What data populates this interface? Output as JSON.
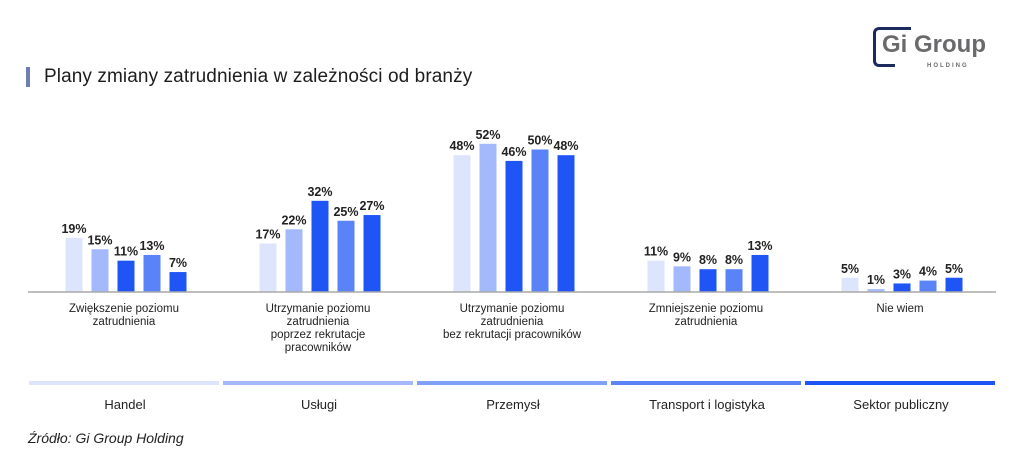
{
  "header": {
    "title": "Plany zmiany zatrudnienia w zależności od branży",
    "logo_main": "Gi Group",
    "logo_sub": "HOLDING"
  },
  "source": "Źródło: Gi Group Holding",
  "chart_data": {
    "type": "bar",
    "title": "Plany zmiany zatrudnienia w zależności od branży",
    "xlabel": "",
    "ylabel": "",
    "ylim": [
      0,
      55
    ],
    "grid": false,
    "legend_position": "bottom",
    "value_suffix": "%",
    "categories": [
      [
        "Zwiększenie poziomu",
        "zatrudnienia"
      ],
      [
        "Utrzymanie poziomu",
        "zatrudnienia",
        "poprzez rekrutacje",
        "pracowników"
      ],
      [
        "Utrzymanie poziomu",
        "zatrudnienia",
        "bez rekrutacji pracowników"
      ],
      [
        "Zmniejszenie poziomu",
        "zatrudnienia"
      ],
      [
        "Nie wiem"
      ]
    ],
    "series": [
      {
        "name": "Handel",
        "color": "#dde5fd",
        "legend_color": "#dde5fd",
        "values": [
          19,
          17,
          48,
          11,
          5
        ]
      },
      {
        "name": "Usługi",
        "color": "#a3b9fb",
        "legend_color": "#a3b9fb",
        "values": [
          15,
          22,
          52,
          9,
          1
        ]
      },
      {
        "name": "Przemysł",
        "color": "#1f55f5",
        "legend_color": "#7f9ffa",
        "values": [
          11,
          32,
          46,
          8,
          3
        ]
      },
      {
        "name": "Transport i logistyka",
        "color": "#5a83f8",
        "legend_color": "#5a83f8",
        "values": [
          13,
          25,
          50,
          8,
          4
        ]
      },
      {
        "name": "Sektor publiczny",
        "color": "#1f55f5",
        "legend_color": "#1f55f5",
        "values": [
          7,
          27,
          48,
          13,
          5
        ]
      }
    ]
  }
}
